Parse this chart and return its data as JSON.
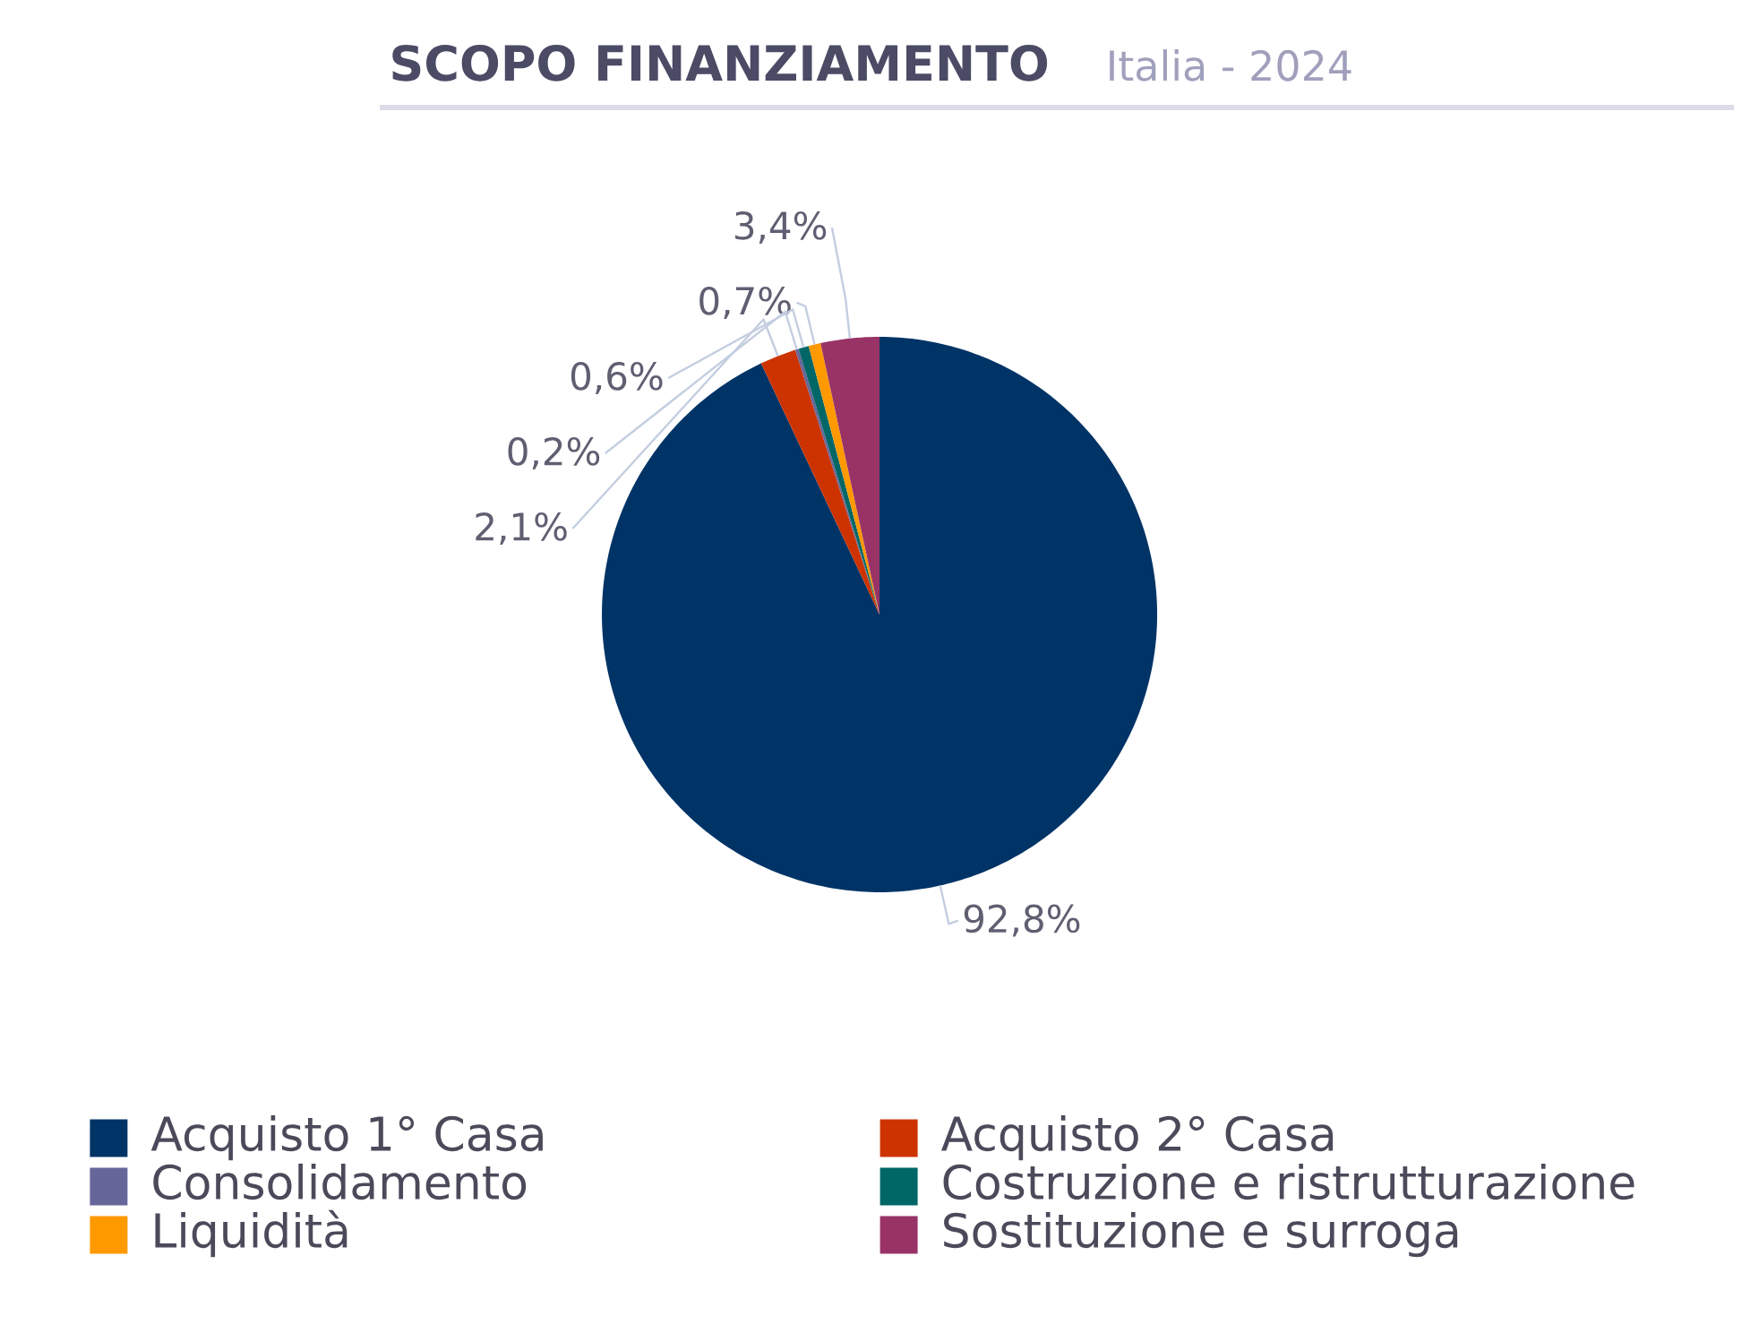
{
  "chart_data": {
    "type": "pie",
    "title": "SCOPO FINANZIAMENTO",
    "subtitle": "Italia - 2024",
    "categories": [
      "Acquisto 1° Casa",
      "Acquisto 2° Casa",
      "Consolidamento",
      "Costruzione e ristrutturazione",
      "Liquidità",
      "Sostituzione e surroga"
    ],
    "values": [
      92.8,
      2.1,
      0.2,
      0.6,
      0.7,
      3.4
    ],
    "colors": [
      "#003366",
      "#cc3300",
      "#666699",
      "#006666",
      "#ff9900",
      "#993366"
    ],
    "value_labels": [
      "92,8%",
      "2,1%",
      "0,2%",
      "0,6%",
      "0,7%",
      "3,4%"
    ],
    "legend": "bottom"
  }
}
